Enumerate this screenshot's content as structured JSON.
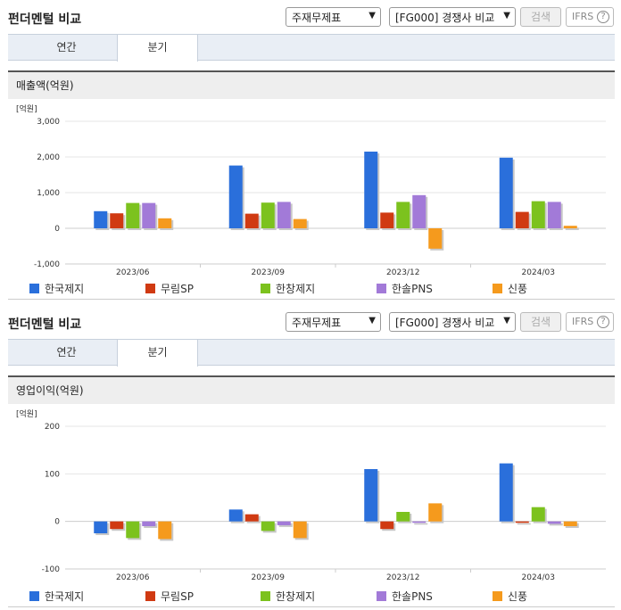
{
  "panels": [
    {
      "title": "펀더멘털 비교",
      "select1": "주재무제표",
      "select2": "[FG000] 경쟁사 비교",
      "search_label": "검색",
      "ifrs_label": "IFRS",
      "ifrs_help": "?",
      "tabs": [
        "연간",
        "분기"
      ],
      "active_tab": 1,
      "chart_title": "매출액(억원)"
    },
    {
      "title": "펀더멘털 비교",
      "select1": "주재무제표",
      "select2": "[FG000] 경쟁사 비교",
      "search_label": "검색",
      "ifrs_label": "IFRS",
      "ifrs_help": "?",
      "tabs": [
        "연간",
        "분기"
      ],
      "active_tab": 1,
      "chart_title": "영업이익(억원)"
    }
  ],
  "colors": {
    "series": [
      "#2a6fdb",
      "#d03a12",
      "#7cc21e",
      "#a27ad8",
      "#f59a1d"
    ]
  },
  "chart_data": [
    {
      "type": "bar",
      "unit_label": "[억원]",
      "categories": [
        "2023/06",
        "2023/09",
        "2023/12",
        "2024/03"
      ],
      "ylim": [
        -1000,
        3000
      ],
      "yticks": [
        3000,
        2000,
        1000,
        0,
        -1000
      ],
      "ytick_labels": [
        "3,000",
        "2,000",
        "1,000",
        "0",
        "-1,000"
      ],
      "series": [
        {
          "name": "한국제지",
          "values": [
            480,
            1760,
            2150,
            1980
          ]
        },
        {
          "name": "무림SP",
          "values": [
            420,
            410,
            440,
            460
          ]
        },
        {
          "name": "한창제지",
          "values": [
            710,
            720,
            740,
            760
          ]
        },
        {
          "name": "한솔PNS",
          "values": [
            710,
            740,
            930,
            740
          ]
        },
        {
          "name": "신풍",
          "values": [
            280,
            260,
            -570,
            70
          ]
        }
      ],
      "legend_position": "bottom"
    },
    {
      "type": "bar",
      "unit_label": "[억원]",
      "categories": [
        "2023/06",
        "2023/09",
        "2023/12",
        "2024/03"
      ],
      "ylim": [
        -100,
        200
      ],
      "yticks": [
        200,
        100,
        0,
        -100
      ],
      "ytick_labels": [
        "200",
        "100",
        "0",
        "-100"
      ],
      "series": [
        {
          "name": "한국제지",
          "values": [
            -25,
            25,
            110,
            122
          ]
        },
        {
          "name": "무림SP",
          "values": [
            -16,
            15,
            -16,
            -3
          ]
        },
        {
          "name": "한창제지",
          "values": [
            -35,
            -20,
            20,
            30
          ]
        },
        {
          "name": "한솔PNS",
          "values": [
            -10,
            -8,
            -3,
            -5
          ]
        },
        {
          "name": "신풍",
          "values": [
            -37,
            -35,
            38,
            -10
          ]
        }
      ],
      "legend_position": "bottom"
    }
  ]
}
